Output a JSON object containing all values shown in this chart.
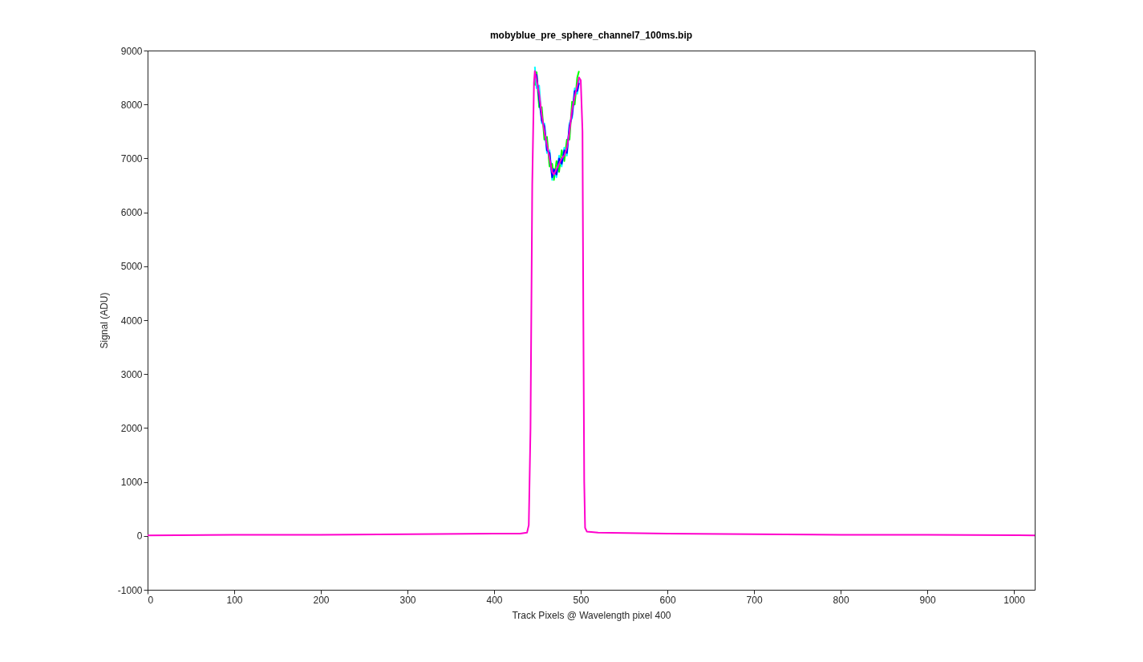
{
  "chart_data": {
    "type": "line",
    "title": "mobyblue_pre_sphere_channel7_100ms.bip",
    "xlabel": "Track Pixels @ Wavelength pixel 400",
    "ylabel": "Signal (ADU)",
    "x": [
      0,
      100,
      200,
      300,
      400,
      430,
      438,
      440,
      442,
      444,
      446,
      447,
      449,
      452,
      455,
      458,
      461,
      464,
      467,
      469,
      472,
      475,
      478,
      481,
      484,
      487,
      490,
      493,
      496,
      498,
      500,
      502,
      503,
      504,
      505,
      507,
      520,
      600,
      700,
      800,
      900,
      1024
    ],
    "series": [
      {
        "color": "#00ff00",
        "x": [
          447,
          449,
          452,
          455,
          458,
          461,
          464,
          467,
          469,
          472,
          475,
          478,
          481,
          484,
          487,
          490,
          493,
          496,
          498
        ],
        "values": [
          8350,
          8600,
          7950,
          7950,
          7350,
          7400,
          6850,
          6900,
          6600,
          6950,
          6750,
          7150,
          6950,
          7350,
          7350,
          8050,
          8000,
          8500,
          8620
        ]
      },
      {
        "color": "#00ffff",
        "x": [
          447,
          449,
          452,
          455,
          458,
          461,
          464,
          467,
          469,
          472,
          475,
          478,
          481,
          484,
          487,
          490,
          493,
          496,
          498
        ],
        "values": [
          8700,
          8300,
          8350,
          7650,
          7650,
          7100,
          7150,
          6600,
          6800,
          6650,
          7050,
          6850,
          7200,
          7050,
          7650,
          7750,
          8300,
          8200,
          8450
        ]
      },
      {
        "color": "#0000ff",
        "x": [
          447,
          449,
          452,
          455,
          458,
          461,
          464,
          467,
          469,
          472,
          475,
          478,
          481,
          484,
          487,
          490,
          493,
          496,
          498
        ],
        "values": [
          8520,
          8550,
          8100,
          7700,
          7600,
          7150,
          7100,
          6650,
          6800,
          6700,
          7000,
          6900,
          7150,
          7100,
          7600,
          7800,
          8250,
          8250,
          8400
        ]
      },
      {
        "color": "#ff00cc",
        "values": [
          10,
          20,
          20,
          30,
          40,
          40,
          60,
          200,
          2000,
          6500,
          8400,
          8620,
          8450,
          8200,
          7800,
          7500,
          7250,
          7000,
          6750,
          6700,
          6800,
          6900,
          7000,
          7050,
          7200,
          7500,
          7900,
          8150,
          8350,
          8500,
          8450,
          7500,
          4000,
          1000,
          150,
          80,
          60,
          40,
          30,
          20,
          20,
          10
        ]
      }
    ],
    "xlim": [
      0,
      1024
    ],
    "xticks": [
      0,
      100,
      200,
      300,
      400,
      500,
      600,
      700,
      800,
      900,
      1000
    ],
    "ylim": [
      -1000,
      9000
    ],
    "yticks": [
      -1000,
      0,
      1000,
      2000,
      3000,
      4000,
      5000,
      6000,
      7000,
      8000,
      9000
    ],
    "grid": false,
    "legend": false
  }
}
